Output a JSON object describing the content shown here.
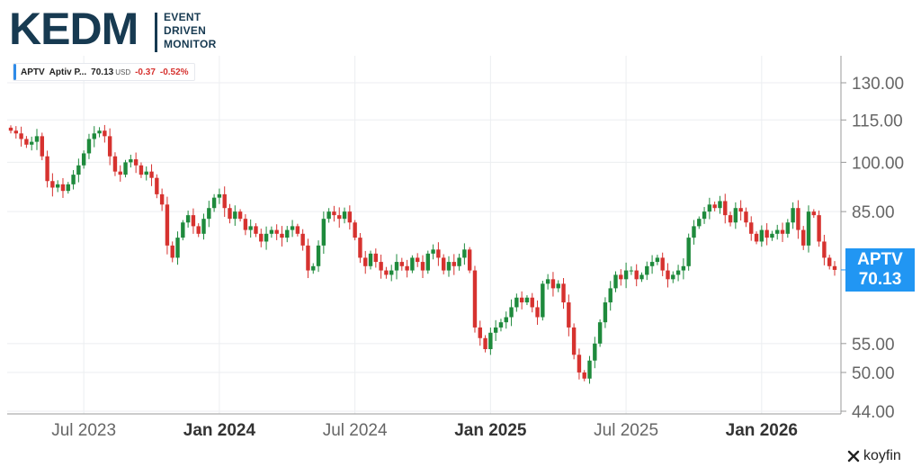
{
  "logo": {
    "wordmark": "KEDM",
    "lines": [
      "EVENT",
      "DRIVEN",
      "MONITOR"
    ]
  },
  "legend": {
    "ticker": "APTV",
    "name": "Aptiv P...",
    "price": "70.13",
    "currency": "USD",
    "change": "-0.37",
    "change_pct": "-0.52%"
  },
  "price_tag": {
    "ticker": "APTV",
    "price": "70.13"
  },
  "brand": "koyfin",
  "colors": {
    "up": "#1e8a3c",
    "down": "#d6322f",
    "accent": "#2196f3"
  },
  "chart_data": {
    "type": "candlestick",
    "title": "",
    "y_scale": "log",
    "ylim": [
      44,
      140
    ],
    "y_ticks": [
      {
        "value": 130,
        "label": "130.00"
      },
      {
        "value": 115,
        "label": "115.00"
      },
      {
        "value": 100,
        "label": "100.00"
      },
      {
        "value": 85,
        "label": "85.00"
      },
      {
        "value": 55,
        "label": "55.00"
      },
      {
        "value": 50,
        "label": "50.00"
      },
      {
        "value": 44,
        "label": "44.00"
      }
    ],
    "x_ticks": [
      {
        "label": "Jul 2023",
        "week": 14,
        "bold": false
      },
      {
        "label": "Jan 2024",
        "week": 40,
        "bold": true
      },
      {
        "label": "Jul 2024",
        "week": 66,
        "bold": false
      },
      {
        "label": "Jan 2025",
        "week": 92,
        "bold": true
      },
      {
        "label": "Jul 2025",
        "week": 118,
        "bold": false
      },
      {
        "label": "Jan 2026",
        "week": 144,
        "bold": true
      }
    ],
    "grid": true,
    "last_price": 70.13,
    "closes": [
      111,
      110,
      108,
      106,
      107,
      109,
      102,
      94,
      92,
      93,
      91,
      93,
      96,
      99,
      103,
      108,
      110,
      111,
      109,
      102,
      97,
      96,
      100,
      101,
      99,
      96,
      97,
      95,
      90,
      87,
      76,
      73,
      78,
      82,
      84,
      81,
      79,
      83,
      86,
      89,
      90,
      86,
      83,
      85,
      83,
      80,
      81,
      79,
      77,
      79,
      80,
      79,
      78,
      80,
      81,
      79,
      76,
      70,
      71,
      76,
      83,
      85,
      84,
      83,
      85,
      82,
      78,
      73,
      71,
      74,
      72,
      70,
      69,
      70,
      72,
      71,
      70,
      73,
      72,
      70,
      74,
      75,
      73,
      70,
      72,
      71,
      73,
      75,
      70,
      58,
      56,
      54,
      57,
      58,
      59,
      60,
      62,
      64,
      63,
      64,
      62,
      60,
      67,
      68,
      66,
      67,
      63,
      58,
      53,
      50,
      49,
      52,
      55,
      59,
      63,
      66,
      69,
      68,
      70,
      70,
      68,
      69,
      71,
      72,
      73,
      70,
      68,
      69,
      70,
      71,
      78,
      81,
      83,
      85,
      87,
      86,
      88,
      84,
      82,
      86,
      85,
      82,
      79,
      77,
      80,
      78,
      79,
      80,
      79,
      82,
      86,
      80,
      76,
      85,
      84,
      77,
      73,
      71,
      70.13
    ]
  }
}
